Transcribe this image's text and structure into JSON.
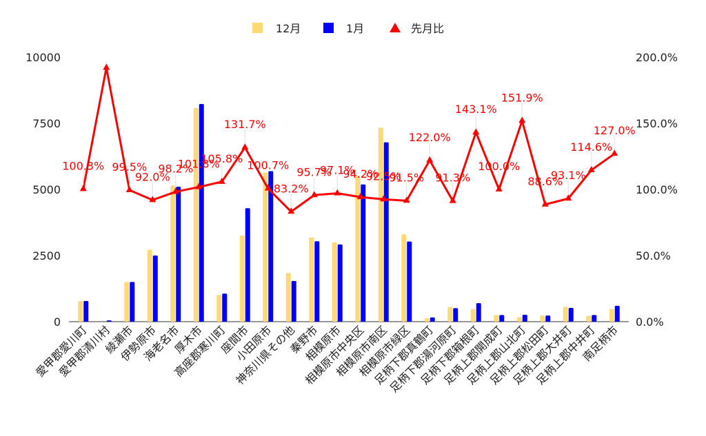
{
  "chart_data": {
    "type": "bar",
    "categories": [
      "愛甲郡愛川町",
      "愛甲郡清川村",
      "綾瀬市",
      "伊勢原市",
      "海老名市",
      "厚木市",
      "高座郡寒川町",
      "座間市",
      "小田原市",
      "神奈川県その他",
      "秦野市",
      "相模原市",
      "相模原市中央区",
      "相模原市南区",
      "相模原市緑区",
      "足柄下郡真鶴町",
      "足柄下郡湯河原町",
      "足柄下郡箱根町",
      "足柄上郡開成町",
      "足柄上郡山北町",
      "足柄上郡松田町",
      "足柄上郡大井町",
      "足柄上郡中井町",
      "南足柄市"
    ],
    "series": [
      {
        "name": "12月",
        "type": "bar",
        "axis": "left",
        "values": [
          780,
          0,
          1500,
          2720,
          5150,
          8080,
          1010,
          3260,
          5640,
          1840,
          3180,
          3000,
          5510,
          7330,
          3300,
          130,
          560,
          480,
          250,
          170,
          230,
          560,
          220,
          480
        ]
      },
      {
        "name": "1月",
        "type": "bar",
        "axis": "left",
        "values": [
          780,
          50,
          1500,
          2500,
          5100,
          8230,
          1060,
          4290,
          5690,
          1540,
          3040,
          2920,
          5190,
          6780,
          3030,
          160,
          510,
          700,
          250,
          260,
          230,
          520,
          250,
          600
        ]
      },
      {
        "name": "先月比",
        "type": "line",
        "axis": "right",
        "values": [
          100.3,
          192,
          99.5,
          92.0,
          98.2,
          101.8,
          105.8,
          131.7,
          100.7,
          83.2,
          95.7,
          97.1,
          94.2,
          92.5,
          91.5,
          122.0,
          91.3,
          143.1,
          100.0,
          151.9,
          88.6,
          93.1,
          114.6,
          127.0
        ],
        "labels": [
          "100.3%",
          "",
          "99.5%",
          "92.0%",
          "98.2%",
          "101.8%",
          "105.8%",
          "131.7%",
          "100.7%",
          "83.2%",
          "95.7%",
          "97.1%",
          "94.2%",
          "92.5%",
          "91.5%",
          "122.0%",
          "91.3%",
          "143.1%",
          "100.0%",
          "151.9%",
          "88.6%",
          "93.1%",
          "114.6%",
          "127.0%"
        ]
      }
    ],
    "ylim": [
      0,
      10000
    ],
    "yticks": [
      "0",
      "2500",
      "5000",
      "7500",
      "10000"
    ],
    "y2lim": [
      0,
      200
    ],
    "y2ticks": [
      "0.0%",
      "50.0%",
      "100.0%",
      "150.0%",
      "200.0%"
    ],
    "legend_position": "top",
    "grid": false,
    "colors": {
      "bar1": "#fdd978",
      "bar2": "#0000ff",
      "line": "#ff0000"
    }
  }
}
